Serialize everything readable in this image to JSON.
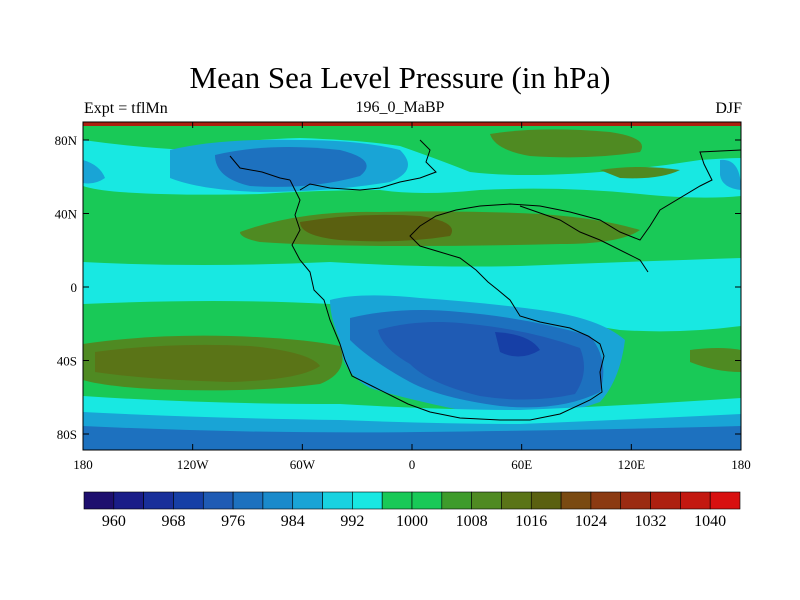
{
  "title": "Mean Sea Level Pressure (in hPa)",
  "left_label": "Expt = tflMn",
  "center_label": "196_0_MaBP",
  "right_label": "DJF",
  "x_ticks": [
    "180",
    "120W",
    "60W",
    "0",
    "60E",
    "120E",
    "180"
  ],
  "y_ticks": [
    "80N",
    "40N",
    "0",
    "40S",
    "80S"
  ],
  "colorbar": {
    "colors": [
      "#1e0f6e",
      "#1a1d88",
      "#182f9a",
      "#163fa6",
      "#1f5bb4",
      "#1d71bf",
      "#1a8acb",
      "#19a4d6",
      "#18d2e0",
      "#18e8e2",
      "#19c957",
      "#19c957",
      "#3e9b2b",
      "#4f8a22",
      "#5a7417",
      "#5a6010",
      "#7a4a12",
      "#8b3a12",
      "#9b2b12",
      "#ad2010",
      "#c31810",
      "#d81010"
    ],
    "labels": [
      "960",
      "968",
      "976",
      "984",
      "992",
      "1000",
      "1008",
      "1016",
      "1024",
      "1032",
      "1040"
    ]
  }
}
